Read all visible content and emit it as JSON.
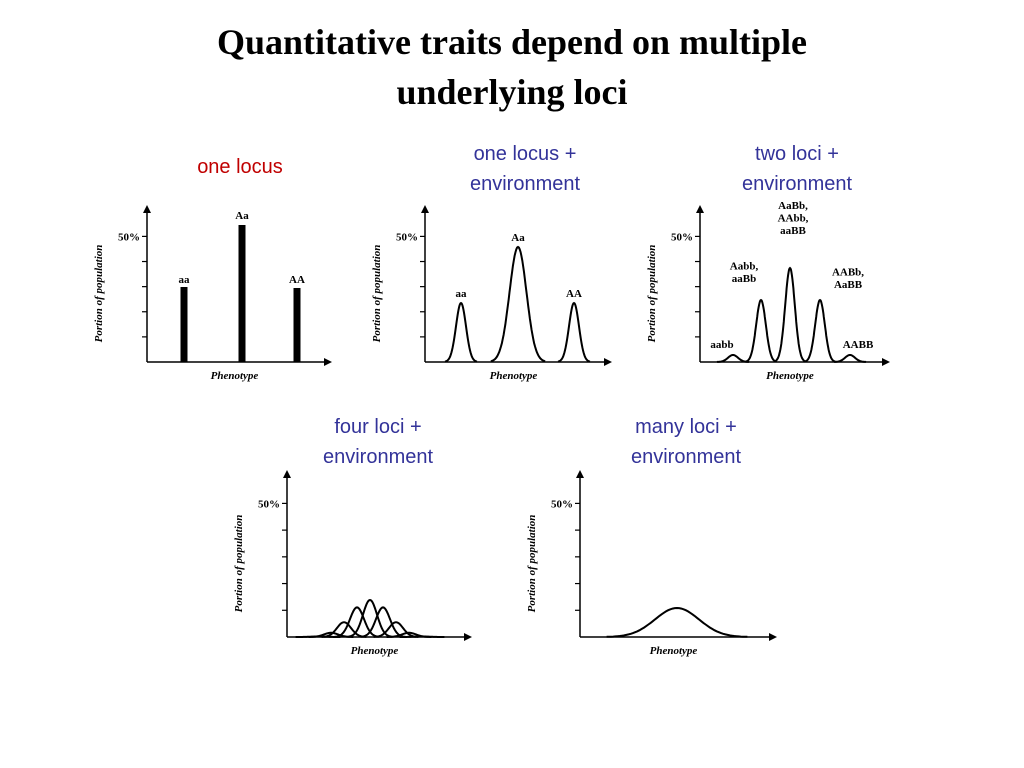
{
  "title": [
    "Quantitative traits depend on multiple",
    "underlying loci"
  ],
  "panels": [
    {
      "caption": [
        "one locus"
      ],
      "caption_color": "#c00000",
      "y_label": "Portion of population",
      "y_tick": "50%",
      "x_label": "Phenotype",
      "genotypes": [
        [
          "aa"
        ],
        [
          "Aa"
        ],
        [
          "AA"
        ]
      ]
    },
    {
      "caption": [
        "one locus +",
        "environment"
      ],
      "caption_color": "#333399",
      "y_label": "Portion of population",
      "y_tick": "50%",
      "x_label": "Phenotype",
      "genotypes": [
        [
          "aa"
        ],
        [
          "Aa"
        ],
        [
          "AA"
        ]
      ]
    },
    {
      "caption": [
        "two loci +",
        "environment"
      ],
      "caption_color": "#333399",
      "y_label": "Portion of population",
      "y_tick": "50%",
      "x_label": "Phenotype",
      "genotypes": [
        [
          "aabb"
        ],
        [
          "Aabb,",
          "aaBb"
        ],
        [
          "AaBb,",
          "AAbb,",
          "aaBB"
        ],
        [
          "AABb,",
          "AaBB"
        ],
        [
          "AABB"
        ]
      ]
    },
    {
      "caption": [
        "four loci +",
        "environment"
      ],
      "caption_color": "#333399",
      "y_label": "Portion of population",
      "y_tick": "50%",
      "x_label": "Phenotype",
      "genotypes": []
    },
    {
      "caption": [
        "many loci +",
        "environment"
      ],
      "caption_color": "#333399",
      "y_label": "Portion of population",
      "y_tick": "50%",
      "x_label": "Phenotype",
      "genotypes": []
    }
  ]
}
